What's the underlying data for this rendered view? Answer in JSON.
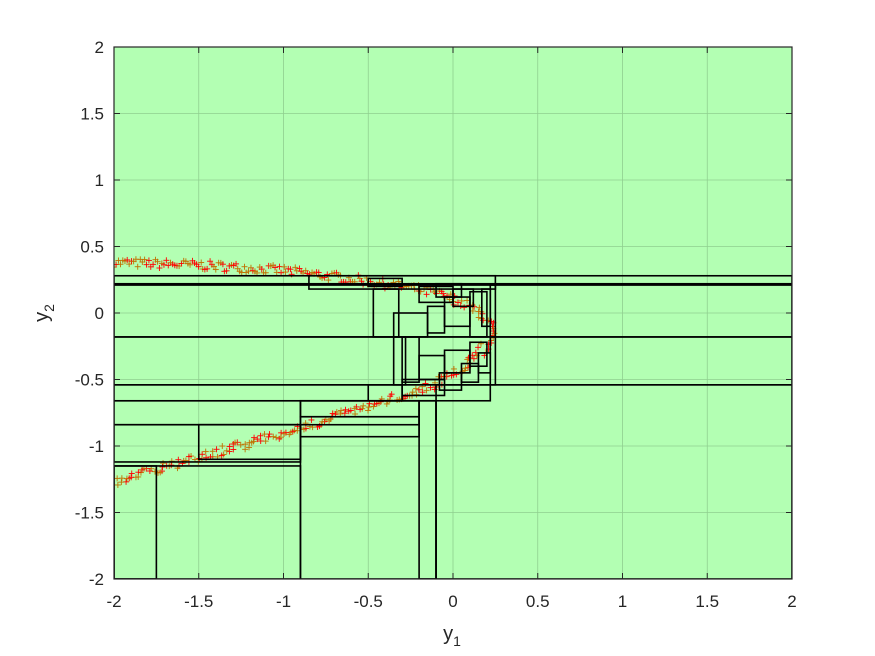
{
  "chart_data": {
    "type": "scatter",
    "title": "",
    "xlabel": "y",
    "xlabel_subscript": "1",
    "ylabel": "y",
    "ylabel_subscript": "2",
    "xlim": [
      -2,
      2
    ],
    "ylim": [
      -2,
      2
    ],
    "xticks": [
      -2,
      -1.5,
      -1,
      -0.5,
      0,
      0.5,
      1,
      1.5,
      2
    ],
    "yticks": [
      -2,
      -1.5,
      -1,
      -0.5,
      0,
      0.5,
      1,
      1.5,
      2
    ],
    "xtick_labels": [
      "-2",
      "-1.5",
      "-1",
      "-0.5",
      "0",
      "0.5",
      "1",
      "1.5",
      "2"
    ],
    "ytick_labels": [
      "-2",
      "-1.5",
      "-1",
      "-0.5",
      "0",
      "0.5",
      "1",
      "1.5",
      "2"
    ],
    "grid": true,
    "legend": "none",
    "colors": {
      "background": "#b3ffb3",
      "box_edge": "#000000",
      "points_red": "#ff0000",
      "points_orange": "#c07000",
      "grid": "#8fcf8f",
      "axes": "#262626"
    },
    "curve_path": [
      [
        -2,
        0.38
      ],
      [
        -1.5,
        0.36
      ],
      [
        -1,
        0.32
      ],
      [
        -0.5,
        0.24
      ],
      [
        -0.25,
        0.19
      ],
      [
        -0.05,
        0.13
      ],
      [
        0.08,
        0.06
      ],
      [
        0.18,
        -0.02
      ],
      [
        0.22,
        -0.1
      ],
      [
        0.21,
        -0.2
      ],
      [
        0.16,
        -0.3
      ],
      [
        0.08,
        -0.4
      ],
      [
        -0.02,
        -0.48
      ],
      [
        -0.15,
        -0.56
      ],
      [
        -0.4,
        -0.66
      ],
      [
        -0.8,
        -0.82
      ],
      [
        -1.2,
        -0.98
      ],
      [
        -1.6,
        -1.12
      ],
      [
        -2,
        -1.27
      ]
    ],
    "curve_band_halfwidth": 0.035,
    "boxes": [
      [
        -2,
        2,
        0.21,
        0.28
      ],
      [
        -2,
        2,
        -0.18,
        0.22
      ],
      [
        -2,
        2,
        -0.54,
        -0.18
      ],
      [
        -2,
        0.22,
        -0.66,
        -0.54
      ],
      [
        -2,
        -0.2,
        -0.84,
        -0.66
      ],
      [
        -2,
        -0.9,
        -1.12,
        -0.84
      ],
      [
        -2,
        -0.9,
        -2,
        -1.15
      ],
      [
        -2,
        -1.75,
        -2,
        -1.15
      ],
      [
        -0.9,
        -0.1,
        -2,
        -0.66
      ],
      [
        -0.1,
        2,
        -2,
        -0.54
      ],
      [
        -0.2,
        -0.1,
        -2,
        -0.66
      ],
      [
        -0.9,
        -0.2,
        -0.78,
        -0.66
      ],
      [
        -0.9,
        -0.2,
        -0.93,
        -0.78
      ],
      [
        -1.5,
        -0.9,
        -1.1,
        -0.84
      ],
      [
        -0.85,
        0.25,
        0.18,
        0.28
      ],
      [
        -0.5,
        -0.3,
        0.2,
        0.26
      ],
      [
        -0.47,
        -0.32,
        -0.18,
        0.18
      ],
      [
        -0.35,
        -0.15,
        -0.18,
        0.0
      ],
      [
        -0.15,
        -0.05,
        -0.15,
        0.05
      ],
      [
        -0.05,
        0.1,
        -0.1,
        0.12
      ],
      [
        0.1,
        0.2,
        -0.18,
        0.16
      ],
      [
        0.17,
        0.22,
        -0.1,
        0.18
      ],
      [
        0.22,
        0.25,
        -0.54,
        0.21
      ],
      [
        -0.35,
        -0.28,
        -0.54,
        -0.18
      ],
      [
        -0.3,
        -0.2,
        -0.52,
        -0.18
      ],
      [
        -0.2,
        -0.05,
        -0.5,
        -0.32
      ],
      [
        -0.05,
        0.1,
        -0.45,
        -0.28
      ],
      [
        0.1,
        0.2,
        -0.4,
        -0.22
      ],
      [
        -0.3,
        -0.05,
        -0.62,
        -0.5
      ],
      [
        -0.5,
        -0.3,
        -0.66,
        -0.54
      ],
      [
        -0.08,
        0.05,
        -0.58,
        -0.45
      ],
      [
        0.05,
        0.15,
        -0.52,
        -0.38
      ],
      [
        0.15,
        0.22,
        -0.45,
        -0.3
      ],
      [
        -0.2,
        0.0,
        0.08,
        0.2
      ],
      [
        0.0,
        0.12,
        0.05,
        0.18
      ],
      [
        -0.1,
        0.05,
        0.12,
        0.22
      ]
    ]
  }
}
